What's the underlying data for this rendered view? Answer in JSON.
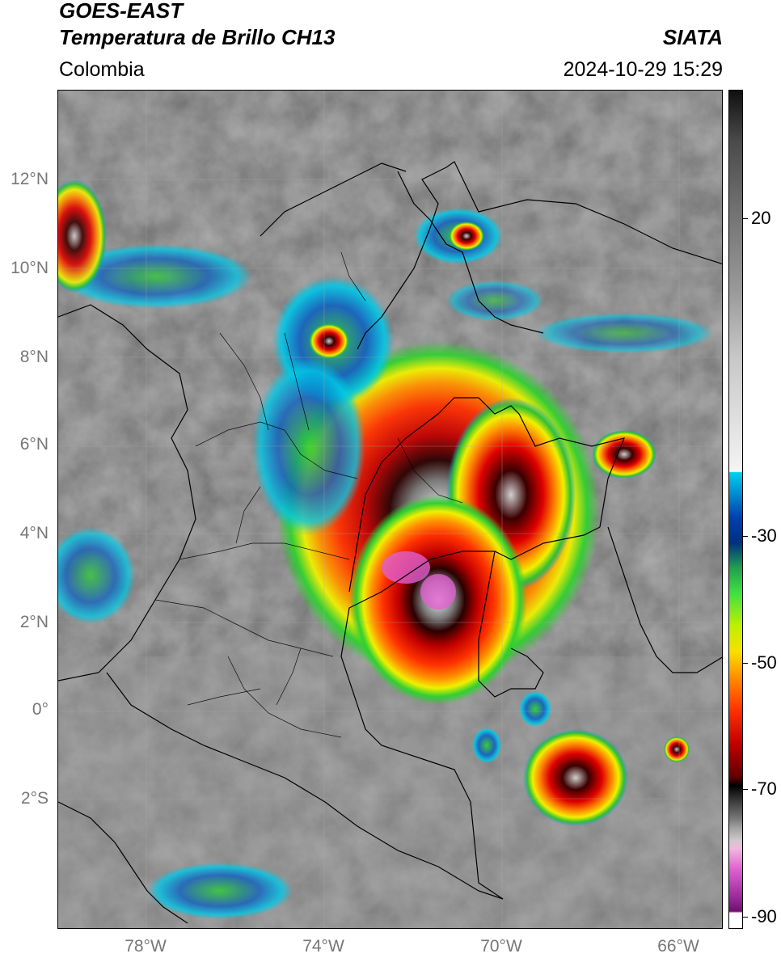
{
  "header": {
    "satellite": "GOES-EAST",
    "product": "Temperatura de Brillo CH13",
    "region": "Colombia",
    "source": "SIATA",
    "datetime": "2024-10-29 15:29"
  },
  "colorbar": {
    "labels": [
      "20",
      "-30",
      "-50",
      "-70",
      "-90"
    ],
    "colors": {
      "warm_gray": "#7a7a7a",
      "cyan": "#00c8e6",
      "blue": "#0030a0",
      "green": "#30d030",
      "yellow": "#f0f000",
      "orange": "#ff8000",
      "red": "#e00000",
      "dark_red": "#500000",
      "black": "#000000",
      "pink": "#e060d0",
      "purple": "#8a1a8a"
    }
  },
  "axes": {
    "lat_labels": [
      "12°N",
      "10°N",
      "8°N",
      "6°N",
      "4°N",
      "2°N",
      "0°",
      "2°S"
    ],
    "lon_labels": [
      "78°W",
      "74°W",
      "70°W",
      "66°W"
    ]
  }
}
